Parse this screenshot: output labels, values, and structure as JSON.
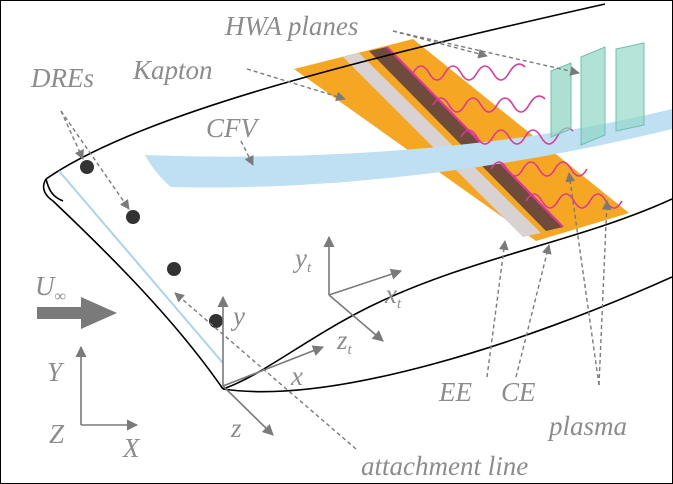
{
  "labels": {
    "hwa_planes": "HWA planes",
    "kapton": "Kapton",
    "dres": "DREs",
    "cfv": "CFV",
    "u_inf_main": "U",
    "u_inf_sub": "∞",
    "y_t_main": "y",
    "y_t_sub": "t",
    "x_t_main": "x",
    "x_t_sub": "t",
    "z_t_main": "z",
    "z_t_sub": "t",
    "y_local": "y",
    "x_local": "x",
    "z_local": "z",
    "Y_global": "Y",
    "Z_global": "Z",
    "X_global": "X",
    "ee": "EE",
    "ce": "CE",
    "plasma": "plasma",
    "attachment_line": "attachment line"
  },
  "colors": {
    "kapton": "#f5a623",
    "electrode_ce": "#6e4b3a",
    "electrode_ee": "#d9d2d2",
    "plasma": "#e0359a",
    "cfv": "#bfe0f2",
    "hwa_plane": "#8fd6c4",
    "annotation": "#8c8c8c",
    "wing_outline": "#000000"
  }
}
